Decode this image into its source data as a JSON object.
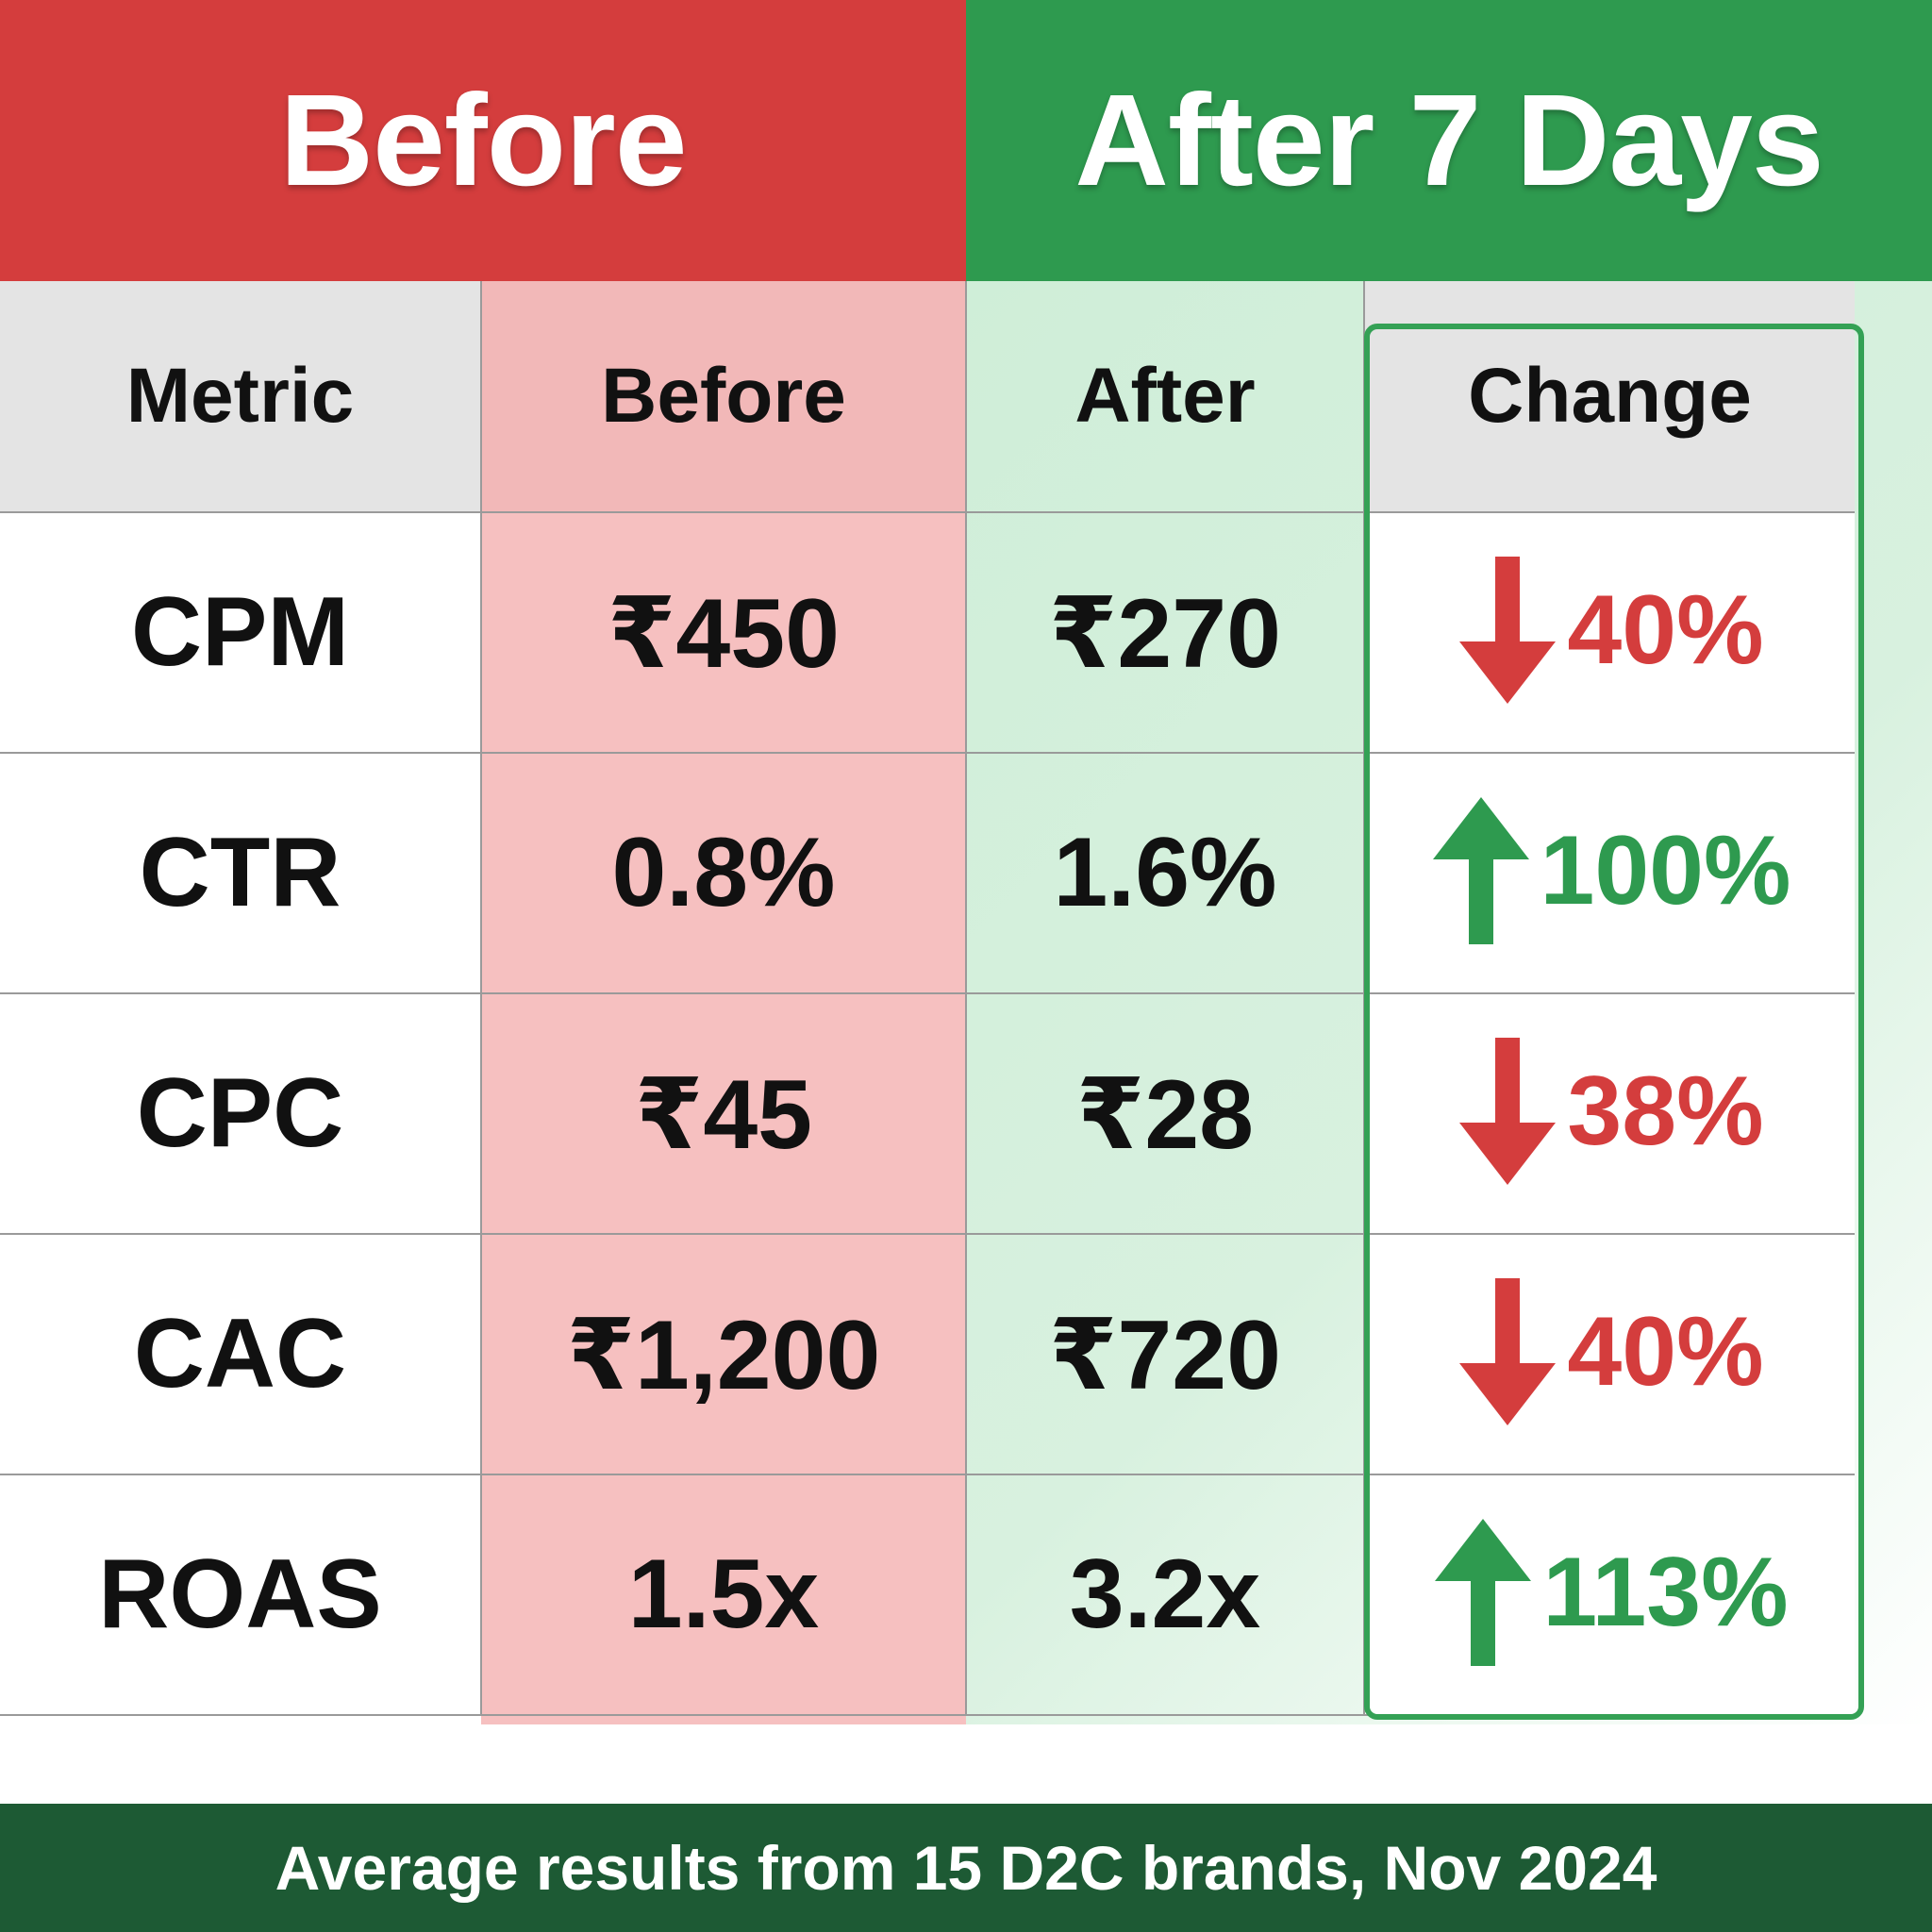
{
  "banners": {
    "before": "Before",
    "after": "After 7 Days"
  },
  "chart_data": {
    "type": "table",
    "columns": [
      "Metric",
      "Before",
      "After",
      "Change"
    ],
    "rows": [
      {
        "metric": "CPM",
        "before": "₹450",
        "after": "₹270",
        "change": "40%",
        "direction": "down"
      },
      {
        "metric": "CTR",
        "before": "0.8%",
        "after": "1.6%",
        "change": "100%",
        "direction": "up"
      },
      {
        "metric": "CPC",
        "before": "₹45",
        "after": "₹28",
        "change": "38%",
        "direction": "down"
      },
      {
        "metric": "CAC",
        "before": "₹1,200",
        "after": "₹720",
        "change": "40%",
        "direction": "down"
      },
      {
        "metric": "ROAS",
        "before": "1.5x",
        "after": "3.2x",
        "change": "113%",
        "direction": "up"
      }
    ]
  },
  "footer": "Average results from 15 D2C brands, Nov 2024",
  "colors": {
    "before_accent": "#d43d3d",
    "after_accent": "#2e9a4f",
    "footer_bg": "#1d5a34",
    "before_cell": "#f6c0c0",
    "after_cell": "#cfeed8"
  }
}
